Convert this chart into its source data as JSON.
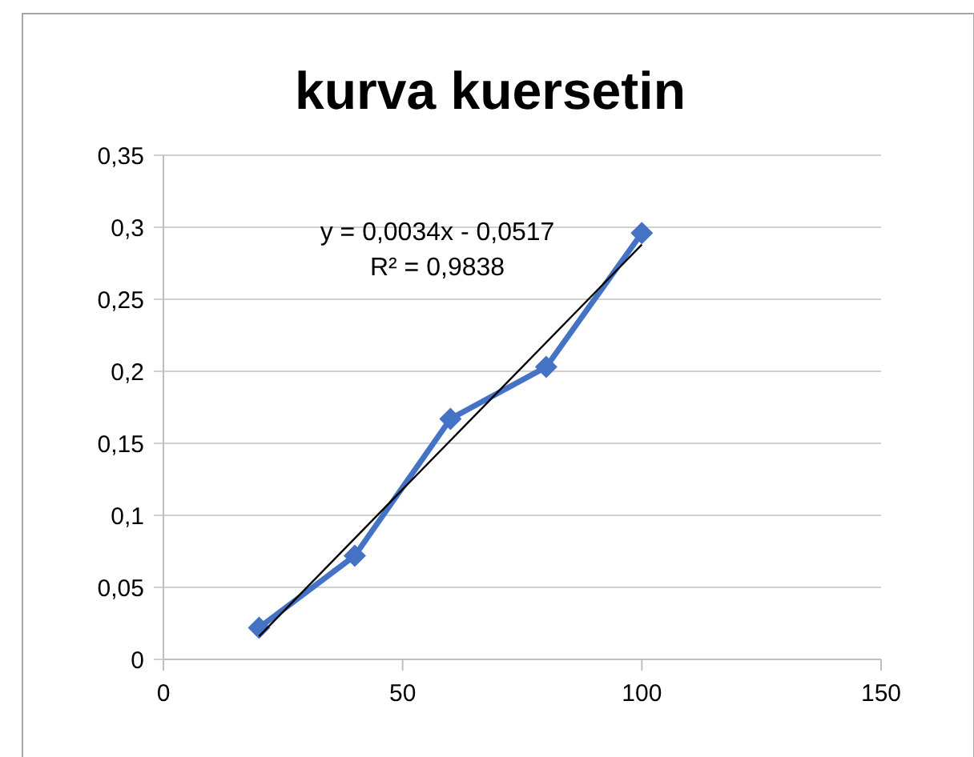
{
  "chart_data": {
    "type": "line",
    "title": "kurva kuersetin",
    "series": [
      {
        "color": "#4472c4",
        "x": [
          20,
          40,
          60,
          80,
          100
        ],
        "values": [
          0.022,
          0.072,
          0.167,
          0.203,
          0.296
        ],
        "marker": "diamond"
      },
      {
        "color": "#000000",
        "x": [
          20,
          100
        ],
        "values": [
          0.016,
          0.288
        ],
        "marker": "none"
      }
    ],
    "xlim": [
      0,
      150
    ],
    "xticks": [
      0,
      50,
      100,
      150
    ],
    "ylim": [
      0,
      0.35
    ],
    "yticks": [
      {
        "value": 0,
        "label": "0"
      },
      {
        "value": 0.05,
        "label": "0,05"
      },
      {
        "value": 0.1,
        "label": "0,1"
      },
      {
        "value": 0.15,
        "label": "0,15"
      },
      {
        "value": 0.2,
        "label": "0,2"
      },
      {
        "value": 0.25,
        "label": "0,25"
      },
      {
        "value": 0.3,
        "label": "0,3"
      },
      {
        "value": 0.35,
        "label": "0,35"
      }
    ],
    "grid": "y",
    "annotations": [
      "y = 0,0034x - 0,0517",
      "R² = 0,9838"
    ]
  }
}
